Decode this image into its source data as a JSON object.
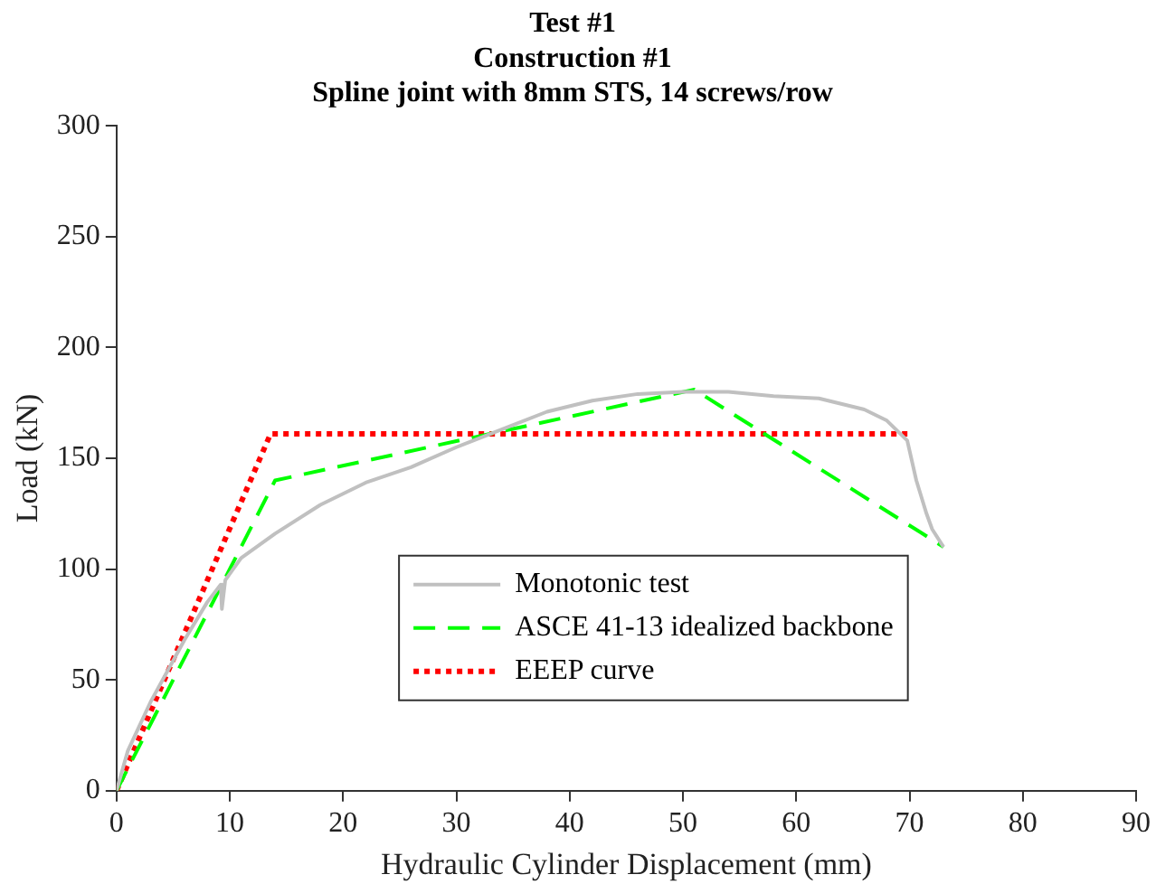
{
  "chart_data": {
    "type": "line",
    "title": [
      "Test #1",
      "Construction #1",
      "Spline joint with 8mm STS, 14 screws/row"
    ],
    "xlabel": "Hydraulic Cylinder Displacement (mm)",
    "ylabel": "Load (kN)",
    "xlim": [
      0,
      90
    ],
    "xticks": [
      0,
      10,
      20,
      30,
      40,
      50,
      60,
      70,
      80,
      90
    ],
    "ylim": [
      0,
      300
    ],
    "yticks": [
      0,
      50,
      100,
      150,
      200,
      250,
      300
    ],
    "grid": false,
    "legend": "bottom",
    "marker": "none",
    "series": [
      {
        "name": "Monotonic test",
        "color": "#c0c0c0",
        "line_style": "solid",
        "x": [
          0,
          1,
          3,
          6,
          8,
          9.2,
          9.3,
          9.6,
          11,
          14,
          18,
          22,
          26,
          30,
          34,
          38,
          42,
          46,
          50,
          54,
          58,
          62,
          66,
          68,
          69.8,
          70.6,
          71.5,
          72,
          73
        ],
        "values": [
          0,
          18,
          40,
          68,
          85,
          93,
          82,
          95,
          105,
          116,
          129,
          139,
          146,
          155,
          163,
          171,
          176,
          179,
          180,
          180,
          178,
          177,
          172,
          167,
          158,
          140,
          125,
          118,
          110
        ]
      },
      {
        "name": "ASCE 41-13 idealized backbone",
        "color": "#00ff00",
        "line_style": "dashed",
        "x": [
          0,
          14,
          51,
          73
        ],
        "values": [
          0,
          140,
          181,
          110
        ]
      },
      {
        "name": "EEEP curve",
        "color": "#ff0000",
        "line_style": "dotted",
        "x": [
          0,
          13.6,
          70
        ],
        "values": [
          0,
          161,
          161
        ]
      }
    ]
  }
}
